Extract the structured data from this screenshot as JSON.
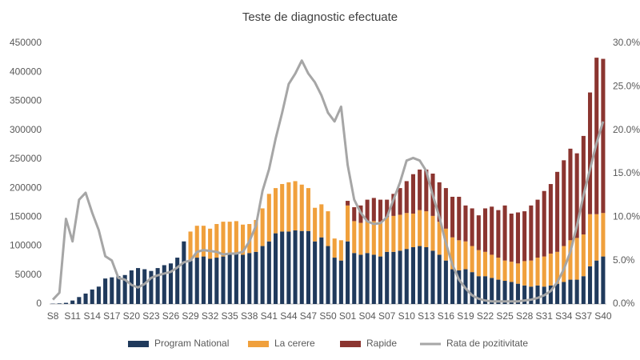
{
  "chart_data": {
    "type": "bar-line",
    "title": "Teste de diagnostic efectuate",
    "categories": [
      "S8",
      null,
      null,
      "S11",
      null,
      null,
      "S14",
      null,
      null,
      "S17",
      null,
      null,
      "S20",
      null,
      null,
      "S23",
      null,
      null,
      "S26",
      null,
      null,
      "S29",
      null,
      null,
      "S32",
      null,
      null,
      "S35",
      null,
      null,
      "S38",
      null,
      null,
      "S41",
      null,
      null,
      "S44",
      null,
      null,
      "S47",
      null,
      null,
      "S50",
      null,
      null,
      "S01",
      null,
      null,
      "S04",
      null,
      null,
      "S07",
      null,
      null,
      "S10",
      null,
      null,
      "S13",
      null,
      null,
      "S16",
      null,
      null,
      "S19",
      null,
      null,
      "S22",
      null,
      null,
      "S25",
      null,
      null,
      "S28",
      null,
      null,
      "S31",
      null,
      null,
      "S34",
      null,
      null,
      "S37",
      null,
      null,
      "S40"
    ],
    "series": [
      {
        "name": "Program National",
        "color": "#203a5c",
        "type": "bar",
        "values": [
          500,
          1000,
          2000,
          6000,
          12000,
          18000,
          25000,
          30000,
          44000,
          46000,
          48000,
          50000,
          58000,
          62000,
          60000,
          57000,
          62000,
          67000,
          70000,
          80000,
          108000,
          75000,
          80000,
          82000,
          78000,
          80000,
          82000,
          85000,
          88000,
          85000,
          88000,
          90000,
          100000,
          108000,
          122000,
          125000,
          125000,
          127000,
          126000,
          126000,
          108000,
          115000,
          100000,
          80000,
          75000,
          108000,
          88000,
          85000,
          88000,
          85000,
          82000,
          90000,
          90000,
          92000,
          95000,
          98000,
          100000,
          98000,
          92000,
          85000,
          75000,
          60000,
          58000,
          60000,
          55000,
          48000,
          48000,
          45000,
          42000,
          40000,
          38000,
          35000,
          32000,
          30000,
          32000,
          30000,
          32000,
          35000,
          38000,
          42000,
          42000,
          48000,
          65000,
          75000,
          82000
        ]
      },
      {
        "name": "La cerere",
        "color": "#f0a03c",
        "type": "bar",
        "values": [
          0,
          0,
          0,
          0,
          0,
          0,
          0,
          0,
          0,
          0,
          0,
          0,
          0,
          0,
          0,
          0,
          0,
          0,
          0,
          0,
          0,
          50000,
          55000,
          53000,
          52000,
          58000,
          60000,
          57000,
          55000,
          52000,
          50000,
          55000,
          65000,
          82000,
          78000,
          82000,
          85000,
          85000,
          80000,
          74000,
          58000,
          57000,
          60000,
          33000,
          35000,
          62000,
          55000,
          55000,
          55000,
          58000,
          60000,
          60000,
          62000,
          62000,
          62000,
          58000,
          62000,
          62000,
          60000,
          57000,
          55000,
          55000,
          52000,
          48000,
          45000,
          45000,
          42000,
          40000,
          38000,
          35000,
          35000,
          35000,
          42000,
          45000,
          48000,
          52000,
          55000,
          55000,
          62000,
          68000,
          72000,
          72000,
          90000,
          80000,
          75000
        ]
      },
      {
        "name": "Rapide",
        "color": "#8b3530",
        "type": "bar",
        "values": [
          0,
          0,
          0,
          0,
          0,
          0,
          0,
          0,
          0,
          0,
          0,
          0,
          0,
          0,
          0,
          0,
          0,
          0,
          0,
          0,
          0,
          0,
          0,
          0,
          0,
          0,
          0,
          0,
          0,
          0,
          0,
          0,
          0,
          0,
          0,
          0,
          0,
          0,
          0,
          0,
          0,
          0,
          0,
          0,
          0,
          8000,
          24000,
          30000,
          37000,
          40000,
          38000,
          30000,
          38000,
          46000,
          55000,
          68000,
          70000,
          72000,
          73000,
          68000,
          70000,
          70000,
          75000,
          62000,
          65000,
          60000,
          75000,
          83000,
          82000,
          95000,
          83000,
          88000,
          86000,
          95000,
          100000,
          113000,
          120000,
          138000,
          148000,
          158000,
          146000,
          170000,
          210000,
          270000,
          266000
        ]
      },
      {
        "name": "Rata de pozitivitate",
        "color": "#a6a6a6",
        "type": "line",
        "axis": "y2",
        "values": [
          0.5,
          1.3,
          9.8,
          7.2,
          12,
          12.8,
          10.5,
          8.5,
          5.5,
          5,
          3,
          2.8,
          2.2,
          1.9,
          2.3,
          3,
          3.3,
          3.5,
          3.7,
          4.2,
          4.8,
          5,
          6,
          6.2,
          6.1,
          6,
          5.7,
          5.8,
          5.8,
          6,
          7.2,
          9,
          13,
          15.5,
          19,
          22,
          25.3,
          26.5,
          28,
          26.5,
          25.5,
          24,
          22,
          21,
          22.7,
          16,
          12,
          10.5,
          9.5,
          9.2,
          9.3,
          10,
          12,
          14,
          16.5,
          16.8,
          16.5,
          15.3,
          12.5,
          10,
          7,
          4.5,
          2.8,
          1.8,
          1,
          0.6,
          0.4,
          0.3,
          0.3,
          0.3,
          0.3,
          0.3,
          0.4,
          0.5,
          0.7,
          1,
          1.5,
          2.5,
          4,
          6,
          9,
          12.5,
          15.5,
          18.5,
          21
        ]
      }
    ],
    "ylim": [
      0,
      450000
    ],
    "yticks": [
      0,
      50000,
      100000,
      150000,
      200000,
      250000,
      300000,
      350000,
      400000,
      450000
    ],
    "y2lim": [
      0,
      30
    ],
    "y2ticks": [
      {
        "value": 0,
        "label": "0.0%"
      },
      {
        "value": 5,
        "label": "5.0%"
      },
      {
        "value": 10,
        "label": "10.0%"
      },
      {
        "value": 15,
        "label": "15.0%"
      },
      {
        "value": 20,
        "label": "20.0%"
      },
      {
        "value": 25,
        "label": "25.0%"
      },
      {
        "value": 30,
        "label": "30.0%"
      }
    ],
    "stacked": true,
    "grid": false,
    "legend": "bottom"
  }
}
